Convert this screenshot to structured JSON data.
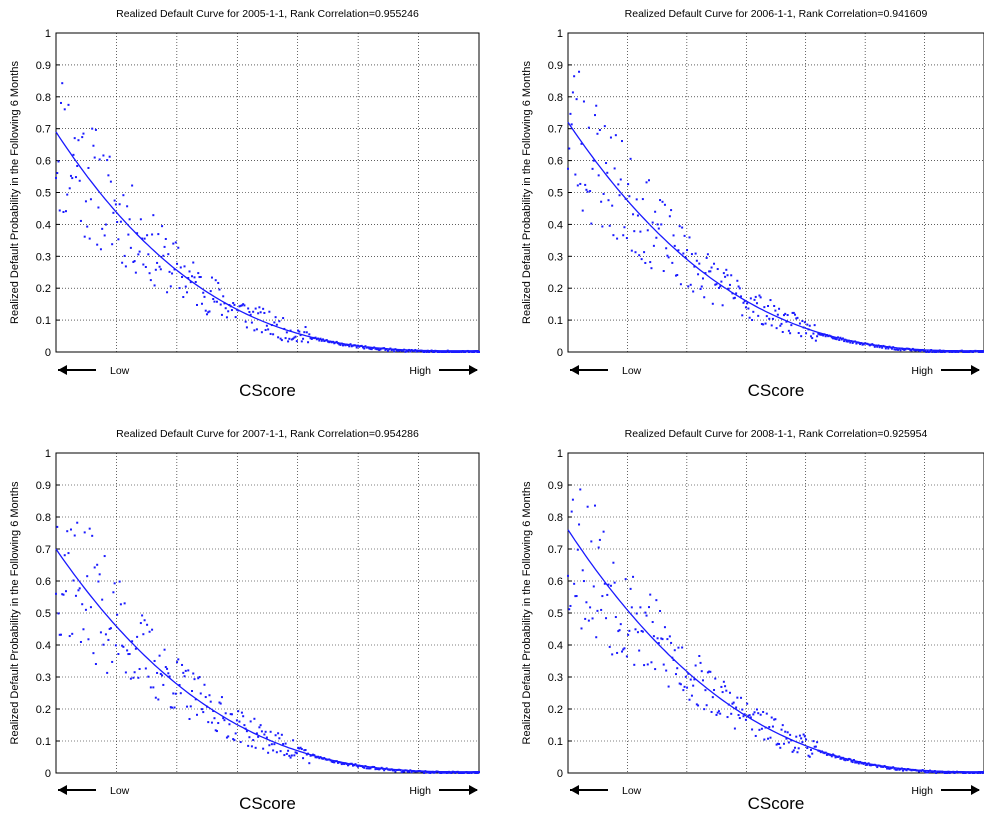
{
  "colors": {
    "marker": "#1a1aff",
    "curve": "#1a1aff",
    "grid": "#000000",
    "axis": "#000000"
  },
  "chart_data": [
    {
      "type": "scatter",
      "title": "Realized Default Curve for 2005-1-1, Rank Correlation=0.955246",
      "xlabel": "CScore",
      "ylabel": "Realized Default Probability in the Following 6 Months",
      "ylim": [
        0,
        1
      ],
      "yticks": [
        "0",
        "0.1",
        "0.2",
        "0.3",
        "0.4",
        "0.5",
        "0.6",
        "0.7",
        "0.8",
        "0.9",
        "1"
      ],
      "x_low_label": "Low",
      "x_high_label": "High",
      "grid": true,
      "fit_curve": {
        "start": 0.69,
        "decay": 2.95
      },
      "scatter_seed": 11
    },
    {
      "type": "scatter",
      "title": "Realized Default Curve for 2006-1-1, Rank Correlation=0.941609",
      "xlabel": "CScore",
      "ylabel": "Realized Default Probability in the Following 6 Months",
      "ylim": [
        0,
        1
      ],
      "yticks": [
        "0",
        "0.1",
        "0.2",
        "0.3",
        "0.4",
        "0.5",
        "0.6",
        "0.7",
        "0.8",
        "0.9",
        "1"
      ],
      "x_low_label": "Low",
      "x_high_label": "High",
      "grid": true,
      "fit_curve": {
        "start": 0.72,
        "decay": 2.7
      },
      "scatter_seed": 23
    },
    {
      "type": "scatter",
      "title": "Realized Default Curve for 2007-1-1, Rank Correlation=0.954286",
      "xlabel": "CScore",
      "ylabel": "Realized Default Probability in the Following 6 Months",
      "ylim": [
        0,
        1
      ],
      "yticks": [
        "0",
        "0.1",
        "0.2",
        "0.3",
        "0.4",
        "0.5",
        "0.6",
        "0.7",
        "0.8",
        "0.9",
        "1"
      ],
      "x_low_label": "Low",
      "x_high_label": "High",
      "grid": true,
      "fit_curve": {
        "start": 0.7,
        "decay": 2.75
      },
      "scatter_seed": 37
    },
    {
      "type": "scatter",
      "title": "Realized Default Curve for 2008-1-1, Rank Correlation=0.925954",
      "xlabel": "CScore",
      "ylabel": "Realized Default Probability in the Following 6 Months",
      "ylim": [
        0,
        1
      ],
      "yticks": [
        "0",
        "0.1",
        "0.2",
        "0.3",
        "0.4",
        "0.5",
        "0.6",
        "0.7",
        "0.8",
        "0.9",
        "1"
      ],
      "x_low_label": "Low",
      "x_high_label": "High",
      "grid": true,
      "fit_curve": {
        "start": 0.76,
        "decay": 2.6
      },
      "scatter_seed": 53
    }
  ]
}
